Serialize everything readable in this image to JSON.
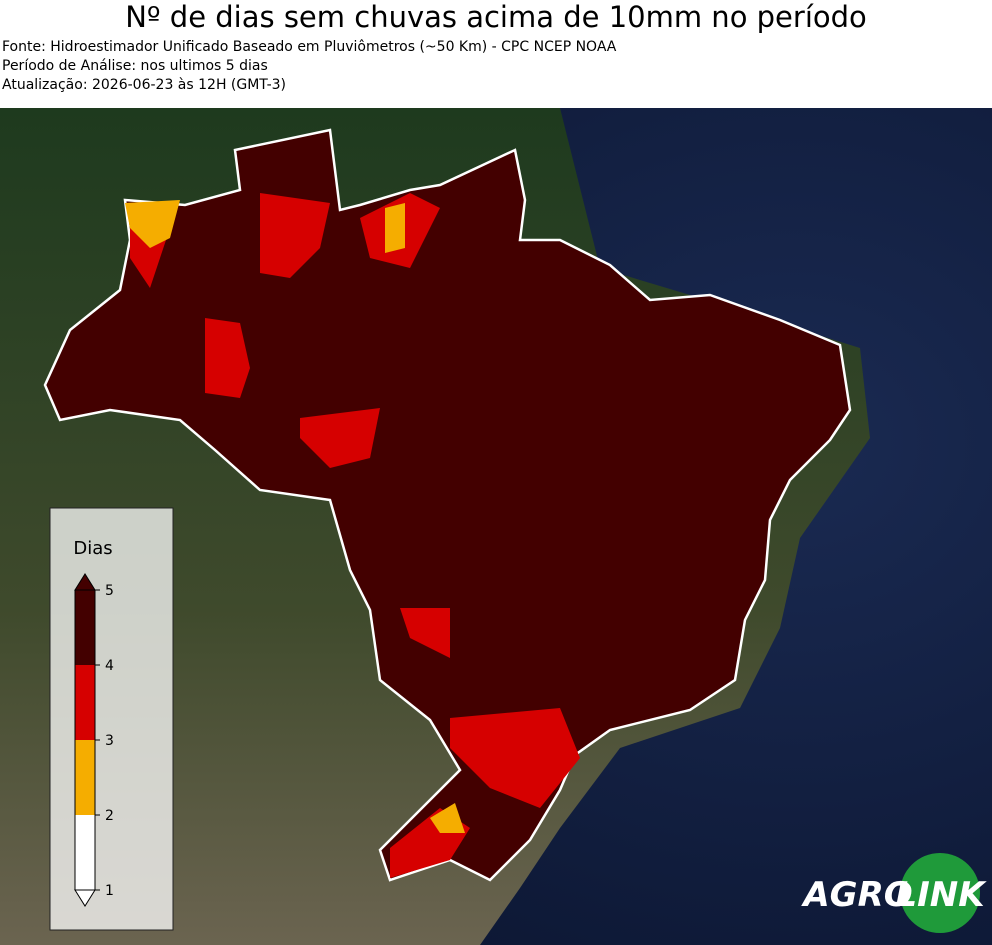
{
  "header": {
    "title": "Nº de dias sem chuvas acima de 10mm no período",
    "lines": [
      "Fonte: Hidroestimador Unificado Baseado em Pluviômetros (~50 Km) - CPC NCEP NOAA",
      "Período de Análise: nos ultimos 5 dias",
      "Atualização: 2026-06-23 às 12H (GMT-3)"
    ]
  },
  "legend": {
    "title": "Dias",
    "ticks": [
      1,
      2,
      3,
      4,
      5
    ],
    "colors": [
      "#ffffff",
      "#f5ad00",
      "#d60000",
      "#430000"
    ]
  },
  "logo": {
    "left": "AGRO",
    "right": "LINK"
  }
}
